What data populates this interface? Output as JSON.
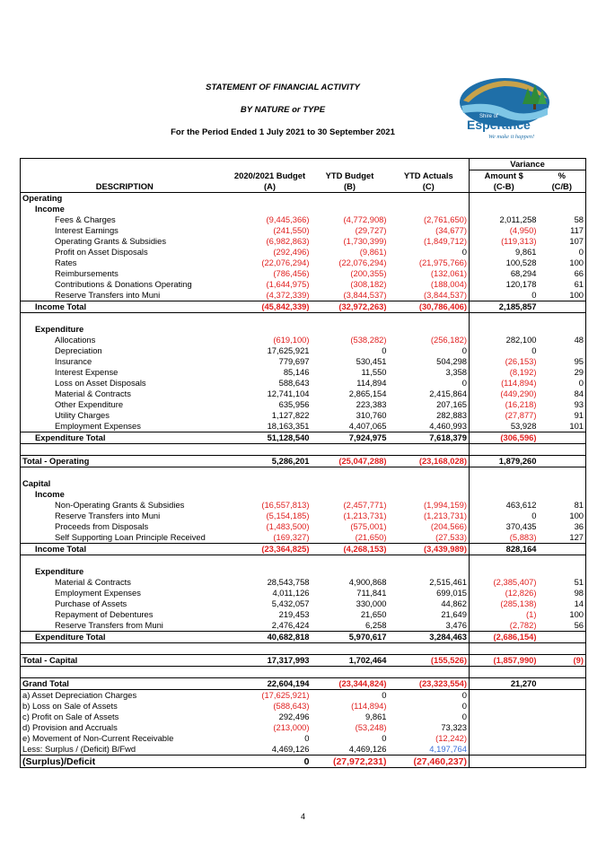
{
  "title1": "STATEMENT OF FINANCIAL ACTIVITY",
  "title2": "BY NATURE or TYPE",
  "title3": "For the Period Ended 1 July 2021 to 30 September 2021",
  "logo": {
    "name": "Shire of",
    "word": "Esperance",
    "tagline": "We make it happen!"
  },
  "headers": {
    "variance": "Variance",
    "description": "DESCRIPTION",
    "budget": "2020/2021 Budget",
    "budget_sub": "(A)",
    "ytd_budget": "YTD Budget",
    "ytd_budget_sub": "(B)",
    "ytd_actuals": "YTD Actuals",
    "ytd_actuals_sub": "(C)",
    "amount": "Amount $",
    "amount_sub": "(C-B)",
    "pct": "%",
    "pct_sub": "(C/B)"
  },
  "rows": [
    {
      "label": "Operating",
      "type": "section"
    },
    {
      "label": "Income",
      "type": "sub"
    },
    {
      "label": "Fees & Charges",
      "type": "item",
      "a": "(9,445,366)",
      "b": "(4,772,908)",
      "c": "(2,761,650)",
      "d": "2,011,258",
      "e": "58"
    },
    {
      "label": "Interest Earnings",
      "type": "item",
      "a": "(241,550)",
      "b": "(29,727)",
      "c": "(34,677)",
      "d": "(4,950)",
      "e": "117"
    },
    {
      "label": "Operating Grants & Subsidies",
      "type": "item",
      "a": "(6,982,863)",
      "b": "(1,730,399)",
      "c": "(1,849,712)",
      "d": "(119,313)",
      "e": "107"
    },
    {
      "label": "Profit on Asset Disposals",
      "type": "item",
      "a": "(292,496)",
      "b": "(9,861)",
      "c": "0",
      "d": "9,861",
      "e": "0"
    },
    {
      "label": "Rates",
      "type": "item",
      "a": "(22,076,294)",
      "b": "(22,076,294)",
      "c": "(21,975,766)",
      "d": "100,528",
      "e": "100"
    },
    {
      "label": "Reimbursements",
      "type": "item",
      "a": "(786,456)",
      "b": "(200,355)",
      "c": "(132,061)",
      "d": "68,294",
      "e": "66"
    },
    {
      "label": "Contributions & Donations Operating",
      "type": "item",
      "a": "(1,644,975)",
      "b": "(308,182)",
      "c": "(188,004)",
      "d": "120,178",
      "e": "61"
    },
    {
      "label": "Reserve Transfers into Muni",
      "type": "item",
      "a": "(4,372,339)",
      "b": "(3,844,537)",
      "c": "(3,844,537)",
      "d": "0",
      "e": "100"
    },
    {
      "label": "Income Total",
      "type": "total",
      "a": "(45,842,339)",
      "b": "(32,972,263)",
      "c": "(30,786,406)",
      "d": "2,185,857",
      "e": ""
    },
    {
      "label": "",
      "type": "blank"
    },
    {
      "label": "Expenditure",
      "type": "sub"
    },
    {
      "label": "Allocations",
      "type": "item",
      "a": "(619,100)",
      "b": "(538,282)",
      "c": "(256,182)",
      "d": "282,100",
      "e": "48"
    },
    {
      "label": "Depreciation",
      "type": "item",
      "a": "17,625,921",
      "b": "0",
      "c": "0",
      "d": "0",
      "e": ""
    },
    {
      "label": "Insurance",
      "type": "item",
      "a": "779,697",
      "b": "530,451",
      "c": "504,298",
      "d": "(26,153)",
      "e": "95"
    },
    {
      "label": "Interest Expense",
      "type": "item",
      "a": "85,146",
      "b": "11,550",
      "c": "3,358",
      "d": "(8,192)",
      "e": "29"
    },
    {
      "label": "Loss on Asset Disposals",
      "type": "item",
      "a": "588,643",
      "b": "114,894",
      "c": "0",
      "d": "(114,894)",
      "e": "0"
    },
    {
      "label": "Material & Contracts",
      "type": "item",
      "a": "12,741,104",
      "b": "2,865,154",
      "c": "2,415,864",
      "d": "(449,290)",
      "e": "84"
    },
    {
      "label": "Other Expenditure",
      "type": "item",
      "a": "635,956",
      "b": "223,383",
      "c": "207,165",
      "d": "(16,218)",
      "e": "93"
    },
    {
      "label": "Utility Charges",
      "type": "item",
      "a": "1,127,822",
      "b": "310,760",
      "c": "282,883",
      "d": "(27,877)",
      "e": "91"
    },
    {
      "label": "Employment Expenses",
      "type": "item",
      "a": "18,163,351",
      "b": "4,407,065",
      "c": "4,460,993",
      "d": "53,928",
      "e": "101"
    },
    {
      "label": "Expenditure Total",
      "type": "total",
      "a": "51,128,540",
      "b": "7,924,975",
      "c": "7,618,379",
      "d": "(306,596)",
      "e": ""
    },
    {
      "label": "",
      "type": "blank"
    },
    {
      "label": "Total - Operating",
      "type": "grand",
      "a": "5,286,201",
      "b": "(25,047,288)",
      "c": "(23,168,028)",
      "d": "1,879,260",
      "e": ""
    },
    {
      "label": "",
      "type": "blank"
    },
    {
      "label": "Capital",
      "type": "section"
    },
    {
      "label": "Income",
      "type": "sub"
    },
    {
      "label": "Non-Operating Grants & Subsidies",
      "type": "item",
      "a": "(16,557,813)",
      "b": "(2,457,771)",
      "c": "(1,994,159)",
      "d": "463,612",
      "e": "81"
    },
    {
      "label": "Reserve Transfers into Muni",
      "type": "item",
      "a": "(5,154,185)",
      "b": "(1,213,731)",
      "c": "(1,213,731)",
      "d": "0",
      "e": "100"
    },
    {
      "label": "Proceeds from Disposals",
      "type": "item",
      "a": "(1,483,500)",
      "b": "(575,001)",
      "c": "(204,566)",
      "d": "370,435",
      "e": "36"
    },
    {
      "label": "Self Supporting Loan Principle Received",
      "type": "item",
      "a": "(169,327)",
      "b": "(21,650)",
      "c": "(27,533)",
      "d": "(5,883)",
      "e": "127"
    },
    {
      "label": "Income Total",
      "type": "total",
      "a": "(23,364,825)",
      "b": "(4,268,153)",
      "c": "(3,439,989)",
      "d": "828,164",
      "e": ""
    },
    {
      "label": "",
      "type": "blank"
    },
    {
      "label": "Expenditure",
      "type": "sub"
    },
    {
      "label": "Material & Contracts",
      "type": "item",
      "a": "28,543,758",
      "b": "4,900,868",
      "c": "2,515,461",
      "d": "(2,385,407)",
      "e": "51"
    },
    {
      "label": "Employment Expenses",
      "type": "item",
      "a": "4,011,126",
      "b": "711,841",
      "c": "699,015",
      "d": "(12,826)",
      "e": "98"
    },
    {
      "label": "Purchase of Assets",
      "type": "item",
      "a": "5,432,057",
      "b": "330,000",
      "c": "44,862",
      "d": "(285,138)",
      "e": "14"
    },
    {
      "label": "Repayment of Debentures",
      "type": "item",
      "a": "219,453",
      "b": "21,650",
      "c": "21,649",
      "d": "(1)",
      "e": "100"
    },
    {
      "label": "Reserve Transfers from Muni",
      "type": "item",
      "a": "2,476,424",
      "b": "6,258",
      "c": "3,476",
      "d": "(2,782)",
      "e": "56"
    },
    {
      "label": "Expenditure Total",
      "type": "total",
      "a": "40,682,818",
      "b": "5,970,617",
      "c": "3,284,463",
      "d": "(2,686,154)",
      "e": ""
    },
    {
      "label": "",
      "type": "blank"
    },
    {
      "label": "Total - Capital",
      "type": "grand",
      "a": "17,317,993",
      "b": "1,702,464",
      "c": "(155,526)",
      "d": "(1,857,990)",
      "e": "(9)"
    },
    {
      "label": "",
      "type": "blank"
    },
    {
      "label": "Grand Total",
      "type": "grandtotal",
      "a": "22,604,194",
      "b": "(23,344,824)",
      "c": "(23,323,554)",
      "d": "21,270",
      "e": ""
    },
    {
      "label": "a) Asset Depreciation Charges",
      "type": "adj",
      "a": "(17,625,921)",
      "b": "0",
      "c": "0",
      "d": "",
      "e": ""
    },
    {
      "label": "b) Loss on Sale of Assets",
      "type": "adj",
      "a": "(588,643)",
      "b": "(114,894)",
      "c": "0",
      "d": "",
      "e": ""
    },
    {
      "label": "c) Profit on Sale of Assets",
      "type": "adj",
      "a": "292,496",
      "b": "9,861",
      "c": "0",
      "d": "",
      "e": ""
    },
    {
      "label": "d) Provision and Accruals",
      "type": "adj",
      "a": "(213,000)",
      "b": "(53,248)",
      "c": "73,323",
      "d": "",
      "e": ""
    },
    {
      "label": "e) Movement of Non-Current Receivable",
      "type": "adj",
      "a": "0",
      "b": "0",
      "c": "(12,242)",
      "d": "",
      "e": ""
    },
    {
      "label": "Less: Surplus / (Deficit) B/Fwd",
      "type": "adj",
      "a": "4,469,126",
      "b": "4,469,126",
      "c": "4,197,764",
      "cblue": true,
      "d": "",
      "e": ""
    },
    {
      "label": "(Surplus)/Deficit",
      "type": "final",
      "a": "0",
      "b": "(27,972,231)",
      "c": "(27,460,237)",
      "d": "",
      "e": ""
    }
  ],
  "page_number": "4",
  "colors": {
    "negative": "#e02020",
    "blue": "#3b6fd8"
  }
}
